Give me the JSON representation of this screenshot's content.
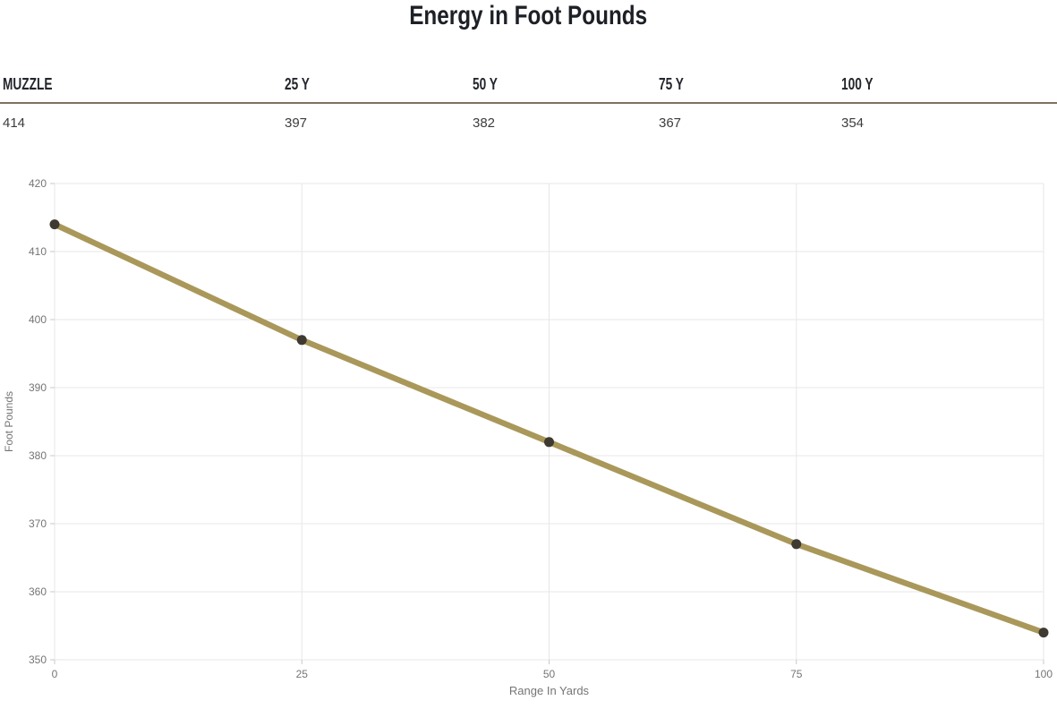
{
  "page_title": "Energy in Foot Pounds",
  "table": {
    "headers": [
      "MUZZLE",
      "25 Y",
      "50 Y",
      "75 Y",
      "100 Y"
    ],
    "values": [
      "414",
      "397",
      "382",
      "367",
      "354"
    ]
  },
  "chart_data": {
    "type": "line",
    "x": [
      0,
      25,
      50,
      75,
      100
    ],
    "values": [
      414,
      397,
      382,
      367,
      354
    ],
    "title": "",
    "xlabel": "Range In Yards",
    "ylabel": "Foot Pounds",
    "xlim": [
      0,
      100
    ],
    "ylim": [
      350,
      420
    ],
    "xticks": [
      0,
      25,
      50,
      75,
      100
    ],
    "yticks": [
      350,
      360,
      370,
      380,
      390,
      400,
      410,
      420
    ],
    "grid": true,
    "legend": "none",
    "line_color": "#a9985a",
    "point_color": "#3f3a31",
    "gridline_color": "#e7e7e7",
    "tick_mark_color": "#c9c9c9",
    "label_color": "#757575"
  },
  "colors": {
    "header_rule": "#7d7260",
    "title_text": "#1d2026",
    "value_text": "#3c3c3c"
  }
}
